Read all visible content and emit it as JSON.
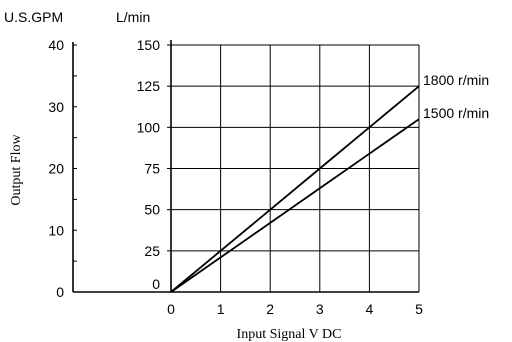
{
  "chart_data": {
    "type": "line",
    "x": [
      0,
      1,
      2,
      3,
      4,
      5
    ],
    "xlim": [
      0,
      5
    ],
    "xticks": [
      "0",
      "1",
      "2",
      "3",
      "4",
      "5"
    ],
    "xlabel": "Input Signal V DC",
    "ylabel": "Output Flow",
    "ylim": [
      0,
      150
    ],
    "yticks": [
      "0",
      "25",
      "50",
      "75",
      "100",
      "125",
      "150"
    ],
    "yunit": "L/min",
    "y2lim": [
      0,
      40
    ],
    "y2ticks": [
      "0",
      "10",
      "20",
      "30",
      "40"
    ],
    "y2unit": "U.S.GPM",
    "grid": true,
    "series": [
      {
        "name": "1800 r/min",
        "values": [
          0,
          25,
          50,
          75,
          100,
          125
        ]
      },
      {
        "name": "1500 r/min",
        "values": [
          0,
          21,
          42,
          63,
          84,
          105
        ]
      }
    ],
    "colors": {
      "line": "#000000",
      "grid": "#000000"
    }
  }
}
